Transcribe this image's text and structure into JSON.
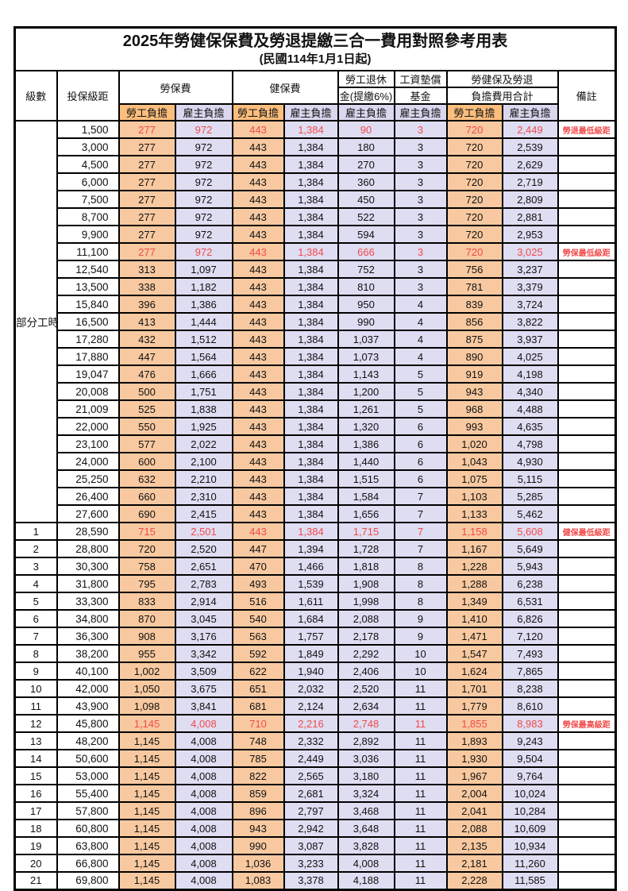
{
  "title": "2025年勞健保保費及勞退提繳三合一費用對照參考用表",
  "subtitle": "(民國114年1月1日起)",
  "colors": {
    "header-orange": "#FBBE7D",
    "cell-orange": "#F8C9A0",
    "header-lavender": "#DAD7EE",
    "cell-lavender": "#DFDDF2",
    "red": "#F14B4B",
    "border": "#000000"
  },
  "header": {
    "level": "級數",
    "bracket": "投保級距",
    "labor_insurance": "勞保費",
    "health_insurance": "健保費",
    "pension_line1": "勞工退休",
    "pension_line2": "金(提繳6%)",
    "wage_fund_line1": "工資墊償",
    "wage_fund_line2": "基金",
    "total_line1": "勞健保及勞退",
    "total_line2": "負擔費用合計",
    "remark": "備註",
    "employee": "勞工負擔",
    "employer": "雇主負擔"
  },
  "part_time_label": "部分工時",
  "part_time_rowspan": 23,
  "rows": [
    {
      "level": "",
      "bracket": "1,500",
      "li_emp": "277",
      "li_er": "972",
      "hi_emp": "443",
      "hi_er": "1,384",
      "pension": "90",
      "fund": "3",
      "tot_emp": "720",
      "tot_er": "2,449",
      "remark": "勞退最低級距",
      "red": true
    },
    {
      "level": "",
      "bracket": "3,000",
      "li_emp": "277",
      "li_er": "972",
      "hi_emp": "443",
      "hi_er": "1,384",
      "pension": "180",
      "fund": "3",
      "tot_emp": "720",
      "tot_er": "2,539",
      "remark": "",
      "red": false
    },
    {
      "level": "",
      "bracket": "4,500",
      "li_emp": "277",
      "li_er": "972",
      "hi_emp": "443",
      "hi_er": "1,384",
      "pension": "270",
      "fund": "3",
      "tot_emp": "720",
      "tot_er": "2,629",
      "remark": "",
      "red": false
    },
    {
      "level": "",
      "bracket": "6,000",
      "li_emp": "277",
      "li_er": "972",
      "hi_emp": "443",
      "hi_er": "1,384",
      "pension": "360",
      "fund": "3",
      "tot_emp": "720",
      "tot_er": "2,719",
      "remark": "",
      "red": false
    },
    {
      "level": "",
      "bracket": "7,500",
      "li_emp": "277",
      "li_er": "972",
      "hi_emp": "443",
      "hi_er": "1,384",
      "pension": "450",
      "fund": "3",
      "tot_emp": "720",
      "tot_er": "2,809",
      "remark": "",
      "red": false
    },
    {
      "level": "",
      "bracket": "8,700",
      "li_emp": "277",
      "li_er": "972",
      "hi_emp": "443",
      "hi_er": "1,384",
      "pension": "522",
      "fund": "3",
      "tot_emp": "720",
      "tot_er": "2,881",
      "remark": "",
      "red": false
    },
    {
      "level": "",
      "bracket": "9,900",
      "li_emp": "277",
      "li_er": "972",
      "hi_emp": "443",
      "hi_er": "1,384",
      "pension": "594",
      "fund": "3",
      "tot_emp": "720",
      "tot_er": "2,953",
      "remark": "",
      "red": false
    },
    {
      "level": "",
      "bracket": "11,100",
      "li_emp": "277",
      "li_er": "972",
      "hi_emp": "443",
      "hi_er": "1,384",
      "pension": "666",
      "fund": "3",
      "tot_emp": "720",
      "tot_er": "3,025",
      "remark": "勞保最低級距",
      "red": true
    },
    {
      "level": "",
      "bracket": "12,540",
      "li_emp": "313",
      "li_er": "1,097",
      "hi_emp": "443",
      "hi_er": "1,384",
      "pension": "752",
      "fund": "3",
      "tot_emp": "756",
      "tot_er": "3,237",
      "remark": "",
      "red": false
    },
    {
      "level": "",
      "bracket": "13,500",
      "li_emp": "338",
      "li_er": "1,182",
      "hi_emp": "443",
      "hi_er": "1,384",
      "pension": "810",
      "fund": "3",
      "tot_emp": "781",
      "tot_er": "3,379",
      "remark": "",
      "red": false
    },
    {
      "level": "",
      "bracket": "15,840",
      "li_emp": "396",
      "li_er": "1,386",
      "hi_emp": "443",
      "hi_er": "1,384",
      "pension": "950",
      "fund": "4",
      "tot_emp": "839",
      "tot_er": "3,724",
      "remark": "",
      "red": false
    },
    {
      "level": "",
      "bracket": "16,500",
      "li_emp": "413",
      "li_er": "1,444",
      "hi_emp": "443",
      "hi_er": "1,384",
      "pension": "990",
      "fund": "4",
      "tot_emp": "856",
      "tot_er": "3,822",
      "remark": "",
      "red": false
    },
    {
      "level": "",
      "bracket": "17,280",
      "li_emp": "432",
      "li_er": "1,512",
      "hi_emp": "443",
      "hi_er": "1,384",
      "pension": "1,037",
      "fund": "4",
      "tot_emp": "875",
      "tot_er": "3,937",
      "remark": "",
      "red": false
    },
    {
      "level": "",
      "bracket": "17,880",
      "li_emp": "447",
      "li_er": "1,564",
      "hi_emp": "443",
      "hi_er": "1,384",
      "pension": "1,073",
      "fund": "4",
      "tot_emp": "890",
      "tot_er": "4,025",
      "remark": "",
      "red": false
    },
    {
      "level": "",
      "bracket": "19,047",
      "li_emp": "476",
      "li_er": "1,666",
      "hi_emp": "443",
      "hi_er": "1,384",
      "pension": "1,143",
      "fund": "5",
      "tot_emp": "919",
      "tot_er": "4,198",
      "remark": "",
      "red": false
    },
    {
      "level": "",
      "bracket": "20,008",
      "li_emp": "500",
      "li_er": "1,751",
      "hi_emp": "443",
      "hi_er": "1,384",
      "pension": "1,200",
      "fund": "5",
      "tot_emp": "943",
      "tot_er": "4,340",
      "remark": "",
      "red": false
    },
    {
      "level": "",
      "bracket": "21,009",
      "li_emp": "525",
      "li_er": "1,838",
      "hi_emp": "443",
      "hi_er": "1,384",
      "pension": "1,261",
      "fund": "5",
      "tot_emp": "968",
      "tot_er": "4,488",
      "remark": "",
      "red": false
    },
    {
      "level": "",
      "bracket": "22,000",
      "li_emp": "550",
      "li_er": "1,925",
      "hi_emp": "443",
      "hi_er": "1,384",
      "pension": "1,320",
      "fund": "6",
      "tot_emp": "993",
      "tot_er": "4,635",
      "remark": "",
      "red": false
    },
    {
      "level": "",
      "bracket": "23,100",
      "li_emp": "577",
      "li_er": "2,022",
      "hi_emp": "443",
      "hi_er": "1,384",
      "pension": "1,386",
      "fund": "6",
      "tot_emp": "1,020",
      "tot_er": "4,798",
      "remark": "",
      "red": false
    },
    {
      "level": "",
      "bracket": "24,000",
      "li_emp": "600",
      "li_er": "2,100",
      "hi_emp": "443",
      "hi_er": "1,384",
      "pension": "1,440",
      "fund": "6",
      "tot_emp": "1,043",
      "tot_er": "4,930",
      "remark": "",
      "red": false
    },
    {
      "level": "",
      "bracket": "25,250",
      "li_emp": "632",
      "li_er": "2,210",
      "hi_emp": "443",
      "hi_er": "1,384",
      "pension": "1,515",
      "fund": "6",
      "tot_emp": "1,075",
      "tot_er": "5,115",
      "remark": "",
      "red": false
    },
    {
      "level": "",
      "bracket": "26,400",
      "li_emp": "660",
      "li_er": "2,310",
      "hi_emp": "443",
      "hi_er": "1,384",
      "pension": "1,584",
      "fund": "7",
      "tot_emp": "1,103",
      "tot_er": "5,285",
      "remark": "",
      "red": false
    },
    {
      "level": "",
      "bracket": "27,600",
      "li_emp": "690",
      "li_er": "2,415",
      "hi_emp": "443",
      "hi_er": "1,384",
      "pension": "1,656",
      "fund": "7",
      "tot_emp": "1,133",
      "tot_er": "5,462",
      "remark": "",
      "red": false
    },
    {
      "level": "1",
      "bracket": "28,590",
      "li_emp": "715",
      "li_er": "2,501",
      "hi_emp": "443",
      "hi_er": "1,384",
      "pension": "1,715",
      "fund": "7",
      "tot_emp": "1,158",
      "tot_er": "5,608",
      "remark": "健保最低級距",
      "red": true
    },
    {
      "level": "2",
      "bracket": "28,800",
      "li_emp": "720",
      "li_er": "2,520",
      "hi_emp": "447",
      "hi_er": "1,394",
      "pension": "1,728",
      "fund": "7",
      "tot_emp": "1,167",
      "tot_er": "5,649",
      "remark": "",
      "red": false
    },
    {
      "level": "3",
      "bracket": "30,300",
      "li_emp": "758",
      "li_er": "2,651",
      "hi_emp": "470",
      "hi_er": "1,466",
      "pension": "1,818",
      "fund": "8",
      "tot_emp": "1,228",
      "tot_er": "5,943",
      "remark": "",
      "red": false
    },
    {
      "level": "4",
      "bracket": "31,800",
      "li_emp": "795",
      "li_er": "2,783",
      "hi_emp": "493",
      "hi_er": "1,539",
      "pension": "1,908",
      "fund": "8",
      "tot_emp": "1,288",
      "tot_er": "6,238",
      "remark": "",
      "red": false
    },
    {
      "level": "5",
      "bracket": "33,300",
      "li_emp": "833",
      "li_er": "2,914",
      "hi_emp": "516",
      "hi_er": "1,611",
      "pension": "1,998",
      "fund": "8",
      "tot_emp": "1,349",
      "tot_er": "6,531",
      "remark": "",
      "red": false
    },
    {
      "level": "6",
      "bracket": "34,800",
      "li_emp": "870",
      "li_er": "3,045",
      "hi_emp": "540",
      "hi_er": "1,684",
      "pension": "2,088",
      "fund": "9",
      "tot_emp": "1,410",
      "tot_er": "6,826",
      "remark": "",
      "red": false
    },
    {
      "level": "7",
      "bracket": "36,300",
      "li_emp": "908",
      "li_er": "3,176",
      "hi_emp": "563",
      "hi_er": "1,757",
      "pension": "2,178",
      "fund": "9",
      "tot_emp": "1,471",
      "tot_er": "7,120",
      "remark": "",
      "red": false
    },
    {
      "level": "8",
      "bracket": "38,200",
      "li_emp": "955",
      "li_er": "3,342",
      "hi_emp": "592",
      "hi_er": "1,849",
      "pension": "2,292",
      "fund": "10",
      "tot_emp": "1,547",
      "tot_er": "7,493",
      "remark": "",
      "red": false
    },
    {
      "level": "9",
      "bracket": "40,100",
      "li_emp": "1,002",
      "li_er": "3,509",
      "hi_emp": "622",
      "hi_er": "1,940",
      "pension": "2,406",
      "fund": "10",
      "tot_emp": "1,624",
      "tot_er": "7,865",
      "remark": "",
      "red": false
    },
    {
      "level": "10",
      "bracket": "42,000",
      "li_emp": "1,050",
      "li_er": "3,675",
      "hi_emp": "651",
      "hi_er": "2,032",
      "pension": "2,520",
      "fund": "11",
      "tot_emp": "1,701",
      "tot_er": "8,238",
      "remark": "",
      "red": false
    },
    {
      "level": "11",
      "bracket": "43,900",
      "li_emp": "1,098",
      "li_er": "3,841",
      "hi_emp": "681",
      "hi_er": "2,124",
      "pension": "2,634",
      "fund": "11",
      "tot_emp": "1,779",
      "tot_er": "8,610",
      "remark": "",
      "red": false
    },
    {
      "level": "12",
      "bracket": "45,800",
      "li_emp": "1,145",
      "li_er": "4,008",
      "hi_emp": "710",
      "hi_er": "2,216",
      "pension": "2,748",
      "fund": "11",
      "tot_emp": "1,855",
      "tot_er": "8,983",
      "remark": "勞保最高級距",
      "red": true
    },
    {
      "level": "13",
      "bracket": "48,200",
      "li_emp": "1,145",
      "li_er": "4,008",
      "hi_emp": "748",
      "hi_er": "2,332",
      "pension": "2,892",
      "fund": "11",
      "tot_emp": "1,893",
      "tot_er": "9,243",
      "remark": "",
      "red": false
    },
    {
      "level": "14",
      "bracket": "50,600",
      "li_emp": "1,145",
      "li_er": "4,008",
      "hi_emp": "785",
      "hi_er": "2,449",
      "pension": "3,036",
      "fund": "11",
      "tot_emp": "1,930",
      "tot_er": "9,504",
      "remark": "",
      "red": false
    },
    {
      "level": "15",
      "bracket": "53,000",
      "li_emp": "1,145",
      "li_er": "4,008",
      "hi_emp": "822",
      "hi_er": "2,565",
      "pension": "3,180",
      "fund": "11",
      "tot_emp": "1,967",
      "tot_er": "9,764",
      "remark": "",
      "red": false
    },
    {
      "level": "16",
      "bracket": "55,400",
      "li_emp": "1,145",
      "li_er": "4,008",
      "hi_emp": "859",
      "hi_er": "2,681",
      "pension": "3,324",
      "fund": "11",
      "tot_emp": "2,004",
      "tot_er": "10,024",
      "remark": "",
      "red": false
    },
    {
      "level": "17",
      "bracket": "57,800",
      "li_emp": "1,145",
      "li_er": "4,008",
      "hi_emp": "896",
      "hi_er": "2,797",
      "pension": "3,468",
      "fund": "11",
      "tot_emp": "2,041",
      "tot_er": "10,284",
      "remark": "",
      "red": false
    },
    {
      "level": "18",
      "bracket": "60,800",
      "li_emp": "1,145",
      "li_er": "4,008",
      "hi_emp": "943",
      "hi_er": "2,942",
      "pension": "3,648",
      "fund": "11",
      "tot_emp": "2,088",
      "tot_er": "10,609",
      "remark": "",
      "red": false
    },
    {
      "level": "19",
      "bracket": "63,800",
      "li_emp": "1,145",
      "li_er": "4,008",
      "hi_emp": "990",
      "hi_er": "3,087",
      "pension": "3,828",
      "fund": "11",
      "tot_emp": "2,135",
      "tot_er": "10,934",
      "remark": "",
      "red": false
    },
    {
      "level": "20",
      "bracket": "66,800",
      "li_emp": "1,145",
      "li_er": "4,008",
      "hi_emp": "1,036",
      "hi_er": "3,233",
      "pension": "4,008",
      "fund": "11",
      "tot_emp": "2,181",
      "tot_er": "11,260",
      "remark": "",
      "red": false
    },
    {
      "level": "21",
      "bracket": "69,800",
      "li_emp": "1,145",
      "li_er": "4,008",
      "hi_emp": "1,083",
      "hi_er": "3,378",
      "pension": "4,188",
      "fund": "11",
      "tot_emp": "2,228",
      "tot_er": "11,585",
      "remark": "",
      "red": false
    }
  ]
}
